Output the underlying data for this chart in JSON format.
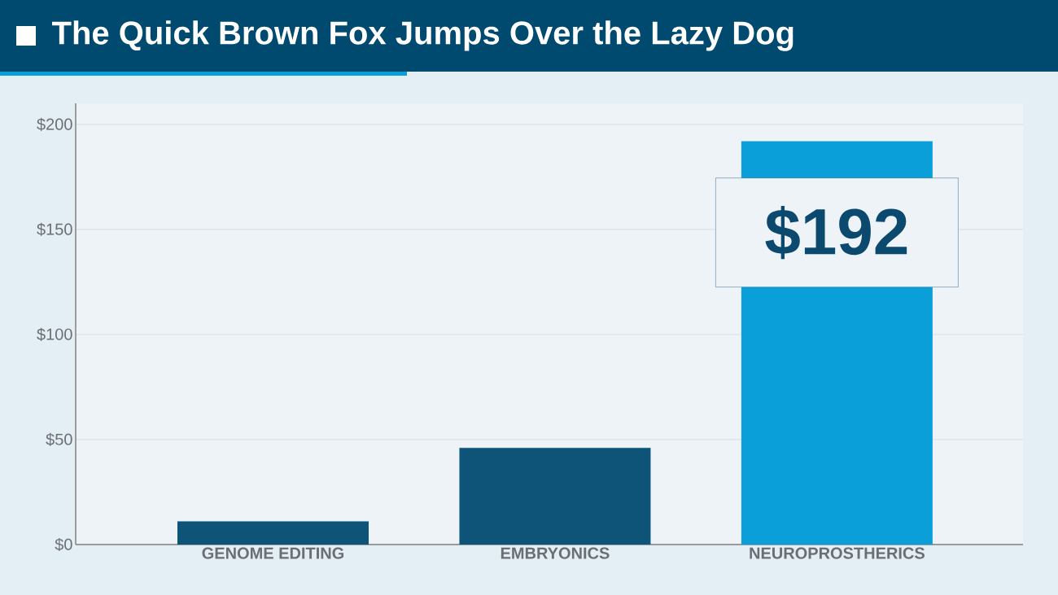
{
  "chart_data": {
    "type": "bar",
    "title": "The Quick Brown Fox Jumps Over the Lazy Dog",
    "categories": [
      "GENOME EDITING",
      "EMBRYONICS",
      "NEUROPROSTHERICS"
    ],
    "values": [
      11,
      46,
      192
    ],
    "colors": [
      "#0e5478",
      "#0e5478",
      "#0a9fd8"
    ],
    "value_labels": [
      null,
      null,
      "$192"
    ],
    "ylim": [
      0,
      210
    ],
    "yticks": [
      {
        "value": 0,
        "label": "$0"
      },
      {
        "value": 50,
        "label": "$50"
      },
      {
        "value": 100,
        "label": "$100"
      },
      {
        "value": 150,
        "label": "$150"
      },
      {
        "value": 200,
        "label": "$200"
      }
    ],
    "grid": "y"
  }
}
